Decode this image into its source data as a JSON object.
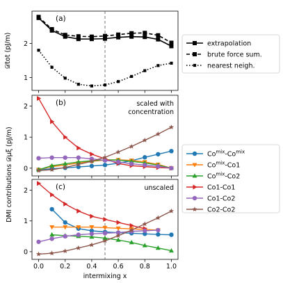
{
  "chart_data": [
    {
      "type": "line",
      "panel_label": "(a)",
      "ylabel": "𝒟tot (pJ/m)",
      "x_ticks": [
        0.0,
        0.2,
        0.4,
        0.6,
        0.8,
        1.0
      ],
      "y_ticks": [
        1,
        2
      ],
      "ylim": [
        0.62,
        2.95
      ],
      "xlim": [
        -0.05,
        1.05
      ],
      "vline": 0.5,
      "series": [
        {
          "name": "extrapolation",
          "color": "#000000",
          "style": "solid",
          "marker": "square",
          "x": [
            0.0,
            0.1,
            0.2,
            0.3,
            0.4,
            0.5,
            0.6,
            0.7,
            0.8,
            0.9,
            1.0
          ],
          "y": [
            2.75,
            2.38,
            2.2,
            2.13,
            2.13,
            2.14,
            2.18,
            2.2,
            2.19,
            2.12,
            1.92
          ]
        },
        {
          "name": "brute force sum.",
          "color": "#000000",
          "style": "dashed",
          "marker": "square",
          "x": [
            0.0,
            0.1,
            0.2,
            0.3,
            0.4,
            0.5,
            0.6,
            0.7,
            0.8,
            0.9,
            1.0
          ],
          "y": [
            2.78,
            2.42,
            2.25,
            2.21,
            2.2,
            2.22,
            2.26,
            2.3,
            2.31,
            2.24,
            2.02
          ]
        },
        {
          "name": "nearest neigh.",
          "color": "#000000",
          "style": "dotted",
          "marker": "square-small",
          "x": [
            0.0,
            0.1,
            0.2,
            0.3,
            0.4,
            0.5,
            0.6,
            0.7,
            0.8,
            0.9,
            1.0
          ],
          "y": [
            1.8,
            1.3,
            0.98,
            0.8,
            0.75,
            0.78,
            0.88,
            1.03,
            1.2,
            1.35,
            1.42
          ]
        }
      ]
    },
    {
      "type": "line",
      "panel_label": "(b)",
      "annotation": [
        "scaled with",
        "concentration"
      ],
      "x_ticks": [
        0.0,
        0.2,
        0.4,
        0.6,
        0.8,
        1.0
      ],
      "y_ticks": [
        0,
        1,
        2
      ],
      "ylim": [
        -0.25,
        2.35
      ],
      "xlim": [
        -0.05,
        1.05
      ],
      "vline": 0.5,
      "series": [
        {
          "name": "Co^mix-Co^mix",
          "color": "#1f77b4",
          "marker": "circle",
          "x": [
            0.0,
            0.1,
            0.2,
            0.3,
            0.4,
            0.5,
            0.6,
            0.7,
            0.8,
            0.9,
            1.0
          ],
          "y": [
            -0.05,
            -0.02,
            0.01,
            0.04,
            0.07,
            0.1,
            0.16,
            0.24,
            0.35,
            0.45,
            0.55
          ]
        },
        {
          "name": "Co^mix-Co1",
          "color": "#ff7f0e",
          "marker": "triangle-down",
          "x": [
            0.0,
            0.1,
            0.2,
            0.3,
            0.4,
            0.5,
            0.6,
            0.7,
            0.8,
            0.9,
            1.0
          ],
          "y": [
            -0.05,
            0.05,
            0.1,
            0.17,
            0.22,
            0.26,
            0.27,
            0.25,
            0.2,
            0.12,
            0.0
          ]
        },
        {
          "name": "Co^mix-Co2",
          "color": "#2ca02c",
          "marker": "triangle-up",
          "x": [
            0.0,
            0.1,
            0.2,
            0.3,
            0.4,
            0.5,
            0.6,
            0.7,
            0.8,
            0.9,
            1.0
          ],
          "y": [
            -0.05,
            0.08,
            0.14,
            0.2,
            0.24,
            0.27,
            0.26,
            0.22,
            0.17,
            0.1,
            0.0
          ]
        },
        {
          "name": "Co1-Co1",
          "color": "#d62728",
          "marker": "triangle-right",
          "x": [
            0.0,
            0.1,
            0.2,
            0.3,
            0.4,
            0.5,
            0.6,
            0.7,
            0.8,
            0.9,
            1.0
          ],
          "y": [
            2.25,
            1.5,
            1.0,
            0.65,
            0.45,
            0.3,
            0.15,
            0.08,
            0.05,
            0.02,
            0.0
          ]
        },
        {
          "name": "Co1-Co2",
          "color": "#9467bd",
          "marker": "circle",
          "x": [
            0.0,
            0.1,
            0.2,
            0.3,
            0.4,
            0.5,
            0.6,
            0.7,
            0.8,
            0.9,
            1.0
          ],
          "y": [
            0.32,
            0.34,
            0.34,
            0.34,
            0.3,
            0.25,
            0.2,
            0.14,
            0.1,
            0.06,
            0.0
          ]
        },
        {
          "name": "Co2-Co2",
          "color": "#8c564b",
          "marker": "star",
          "x": [
            0.0,
            0.1,
            0.2,
            0.3,
            0.4,
            0.5,
            0.6,
            0.7,
            0.8,
            0.9,
            1.0
          ],
          "y": [
            -0.08,
            -0.05,
            0.02,
            0.12,
            0.22,
            0.35,
            0.52,
            0.7,
            0.9,
            1.1,
            1.32
          ]
        }
      ]
    },
    {
      "type": "line",
      "panel_label": "(c)",
      "annotation": [
        "unscaled"
      ],
      "xlabel": "intermixing x",
      "x_ticks": [
        0.0,
        0.2,
        0.4,
        0.6,
        0.8,
        1.0
      ],
      "y_ticks": [
        0,
        1,
        2
      ],
      "ylim": [
        -0.25,
        2.35
      ],
      "xlim": [
        -0.05,
        1.05
      ],
      "vline": 0.5,
      "series": [
        {
          "name": "Co^mix-Co^mix",
          "color": "#1f77b4",
          "marker": "circle",
          "x": [
            0.1,
            0.2,
            0.3,
            0.4,
            0.5,
            0.6,
            0.7,
            0.8,
            0.9,
            1.0
          ],
          "y": [
            1.38,
            0.95,
            0.75,
            0.68,
            0.64,
            0.62,
            0.6,
            0.58,
            0.56,
            0.55
          ]
        },
        {
          "name": "Co^mix-Co1",
          "color": "#ff7f0e",
          "marker": "triangle-down",
          "x": [
            0.1,
            0.2,
            0.3,
            0.4,
            0.5,
            0.6,
            0.7,
            0.8,
            0.9
          ],
          "y": [
            0.8,
            0.8,
            0.8,
            0.8,
            0.78,
            0.76,
            0.74,
            0.72,
            0.7
          ]
        },
        {
          "name": "Co^mix-Co2",
          "color": "#2ca02c",
          "marker": "triangle-up",
          "x": [
            0.1,
            0.2,
            0.3,
            0.4,
            0.5,
            0.6,
            0.7,
            0.8,
            0.9,
            1.0
          ],
          "y": [
            0.55,
            0.52,
            0.5,
            0.48,
            0.44,
            0.38,
            0.3,
            0.2,
            0.12,
            0.03
          ]
        },
        {
          "name": "Co1-Co1",
          "color": "#d62728",
          "marker": "triangle-right",
          "x": [
            0.0,
            0.1,
            0.2,
            0.3,
            0.4,
            0.5,
            0.6,
            0.7,
            0.8
          ],
          "y": [
            2.22,
            1.85,
            1.55,
            1.32,
            1.15,
            1.05,
            0.95,
            0.85,
            0.75
          ]
        },
        {
          "name": "Co1-Co2",
          "color": "#9467bd",
          "marker": "circle",
          "x": [
            0.0,
            0.1,
            0.2,
            0.3,
            0.4,
            0.5,
            0.6,
            0.7,
            0.8,
            0.9
          ],
          "y": [
            0.32,
            0.42,
            0.5,
            0.55,
            0.58,
            0.6,
            0.62,
            0.66,
            0.68,
            0.7
          ]
        },
        {
          "name": "Co2-Co2",
          "color": "#8c564b",
          "marker": "star",
          "x": [
            0.0,
            0.1,
            0.2,
            0.3,
            0.4,
            0.5,
            0.6,
            0.7,
            0.8,
            0.9,
            1.0
          ],
          "y": [
            -0.08,
            -0.05,
            0.02,
            0.12,
            0.22,
            0.35,
            0.52,
            0.7,
            0.9,
            1.1,
            1.32
          ]
        }
      ]
    }
  ],
  "shared_ylabel_bc": "DMI contributions 𝒟μξ (pJ/m)",
  "shared_ylabel_bc_super": "νχ",
  "legend_top": [
    {
      "label": "extrapolation",
      "style": "solid",
      "marker": "square"
    },
    {
      "label": "brute force sum.",
      "style": "dashed",
      "marker": "square"
    },
    {
      "label": "nearest neigh.",
      "style": "dotted",
      "marker": "square-small"
    }
  ],
  "legend_bottom": [
    {
      "base": "Co",
      "sup": "mix",
      "mid": "-Co",
      "sup2": "mix",
      "tail": "",
      "color": "#1f77b4",
      "marker": "circle"
    },
    {
      "base": "Co",
      "sup": "mix",
      "mid": "-Co1",
      "sup2": "",
      "tail": "",
      "color": "#ff7f0e",
      "marker": "triangle-down"
    },
    {
      "base": "Co",
      "sup": "mix",
      "mid": "-Co2",
      "sup2": "",
      "tail": "",
      "color": "#2ca02c",
      "marker": "triangle-up"
    },
    {
      "base": "Co1-Co1",
      "sup": "",
      "mid": "",
      "sup2": "",
      "tail": "",
      "color": "#d62728",
      "marker": "triangle-right"
    },
    {
      "base": "Co1-Co2",
      "sup": "",
      "mid": "",
      "sup2": "",
      "tail": "",
      "color": "#9467bd",
      "marker": "circle"
    },
    {
      "base": "Co2-Co2",
      "sup": "",
      "mid": "",
      "sup2": "",
      "tail": "",
      "color": "#8c564b",
      "marker": "star"
    }
  ]
}
